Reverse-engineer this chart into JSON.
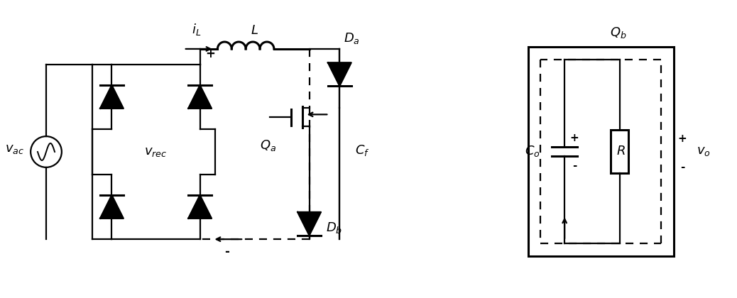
{
  "fig_width": 10.38,
  "fig_height": 4.2,
  "bg_color": "#ffffff",
  "lw": 1.6,
  "lw2": 2.2,
  "dash": [
    5,
    4
  ],
  "labels": {
    "vac": "$v_{ac}$",
    "vrec": "$v_{rec}$",
    "iL": "$i_L$",
    "L": "$L$",
    "Da": "$D_a$",
    "Db": "$D_b$",
    "Qa": "$Q_a$",
    "Qb": "$Q_b$",
    "Cf": "$C_f$",
    "Co": "$C_o$",
    "R": "$R$",
    "vo": "$v_o$"
  },
  "fs": 13
}
